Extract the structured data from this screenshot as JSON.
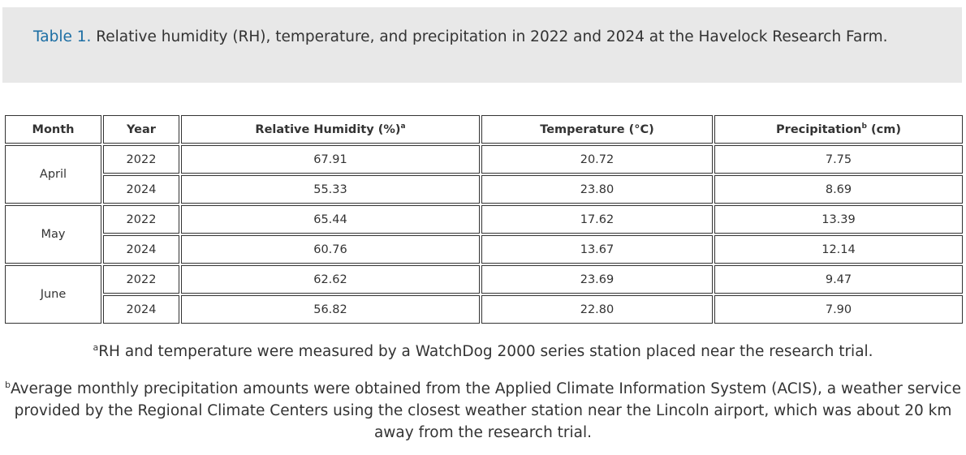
{
  "caption": {
    "label": "Table 1.",
    "text": " Relative humidity (RH), temperature, and precipitation in 2022 and 2024 at the Havelock Research Farm."
  },
  "table": {
    "headers": {
      "month": "Month",
      "year": "Year",
      "rh": "Relative Humidity (%)",
      "rh_sup": "a",
      "temp": "Temperature (°C)",
      "precip_pre": "Precipitation",
      "precip_sup": "b",
      "precip_post": " (cm)"
    },
    "groups": [
      {
        "month": "April",
        "rows": [
          {
            "year": "2022",
            "rh": "67.91",
            "temp": "20.72",
            "precip": "7.75"
          },
          {
            "year": "2024",
            "rh": "55.33",
            "temp": "23.80",
            "precip": "8.69"
          }
        ]
      },
      {
        "month": "May",
        "rows": [
          {
            "year": "2022",
            "rh": "65.44",
            "temp": "17.62",
            "precip": "13.39"
          },
          {
            "year": "2024",
            "rh": "60.76",
            "temp": "13.67",
            "precip": "12.14"
          }
        ]
      },
      {
        "month": "June",
        "rows": [
          {
            "year": "2022",
            "rh": "62.62",
            "temp": "23.69",
            "precip": "9.47"
          },
          {
            "year": "2024",
            "rh": "56.82",
            "temp": "22.80",
            "precip": "7.90"
          }
        ]
      }
    ]
  },
  "footnotes": {
    "a_mark": "a",
    "a_text": "RH and temperature were measured by a WatchDog 2000 series station placed near the research trial.",
    "b_mark": "b",
    "b_text": "Average monthly precipitation amounts were obtained from the Applied Climate Information System (ACIS), a weather service provided by the Regional Climate Centers using the closest weather station near the Lincoln airport, which was about 20 km away from the research trial."
  }
}
